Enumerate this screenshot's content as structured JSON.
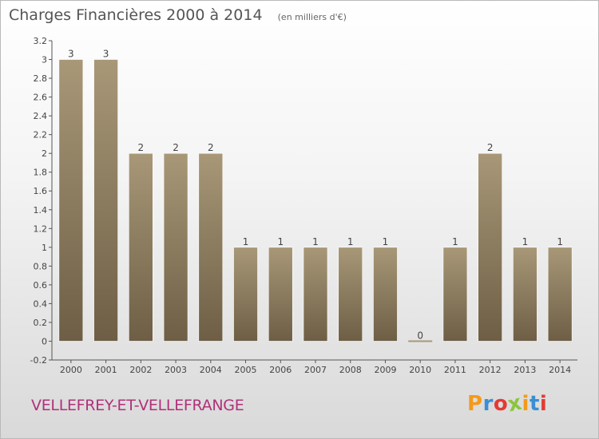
{
  "header": {
    "title": "Charges Financières 2000 à 2014",
    "subtitle": "(en milliers d'€)"
  },
  "footer": {
    "commune": "VELLEFREY-ET-VELLEFRANGE",
    "brand": "Proxiti"
  },
  "colors": {
    "bar_light": "#a89878",
    "bar_dark": "#6e5e45",
    "commune_text": "#b0317a",
    "brand_letters": [
      "#f39a1b",
      "#3a8fd4",
      "#e23b34",
      "#8bc53f",
      "#f39a1b",
      "#3a8fd4",
      "#e23b34"
    ]
  },
  "chart_data": {
    "type": "bar",
    "title": "Charges Financières 2000 à 2014",
    "subtitle": "(en milliers d'€)",
    "categories": [
      "2000",
      "2001",
      "2002",
      "2003",
      "2004",
      "2005",
      "2006",
      "2007",
      "2008",
      "2009",
      "2010",
      "2011",
      "2012",
      "2013",
      "2014"
    ],
    "values": [
      3,
      3,
      2,
      2,
      2,
      1,
      1,
      1,
      1,
      1,
      0,
      1,
      2,
      1,
      1
    ],
    "data_labels": [
      "3",
      "3",
      "2",
      "2",
      "2",
      "1",
      "1",
      "1",
      "1",
      "1",
      "0",
      "1",
      "2",
      "1",
      "1"
    ],
    "y_ticks": [
      "-0.2",
      "0",
      "0.2",
      "0.4",
      "0.6",
      "0.8",
      "1",
      "1.2",
      "1.4",
      "1.6",
      "1.8",
      "2",
      "2.2",
      "2.4",
      "2.6",
      "2.8",
      "3",
      "3.2"
    ],
    "ylim": [
      -0.2,
      3.2
    ],
    "xlabel": "",
    "ylabel": "",
    "grid": false,
    "legend": "none"
  }
}
